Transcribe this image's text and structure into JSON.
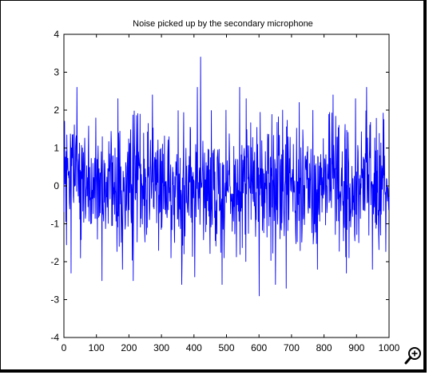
{
  "chart_data": {
    "type": "line",
    "title": "Noise picked up by the secondary microphone",
    "xlabel": "",
    "ylabel": "",
    "xlim": [
      0,
      1000
    ],
    "ylim": [
      -4,
      4
    ],
    "xticks": [
      0,
      100,
      200,
      300,
      400,
      500,
      600,
      700,
      800,
      900,
      1000
    ],
    "yticks": [
      -4,
      -3,
      -2,
      -1,
      0,
      1,
      2,
      3,
      4
    ],
    "xtick_labels": [
      "0",
      "100",
      "200",
      "300",
      "400",
      "500",
      "600",
      "700",
      "800",
      "900",
      "1000"
    ],
    "ytick_labels": [
      "-4",
      "-3",
      "-2",
      "-1",
      "0",
      "1",
      "2",
      "3",
      "4"
    ],
    "grid": true,
    "series": [
      {
        "color": "#0000ff",
        "n_points": 1000,
        "description_of_values": "random noise samples, roughly unit-variance, mostly within [-2, 2]",
        "notable_points": [
          {
            "x": 22,
            "y": -2.3
          },
          {
            "x": 40,
            "y": 2.6
          },
          {
            "x": 117,
            "y": -2.5
          },
          {
            "x": 166,
            "y": 2.3
          },
          {
            "x": 180,
            "y": -2.2
          },
          {
            "x": 213,
            "y": -2.5
          },
          {
            "x": 272,
            "y": 2.4
          },
          {
            "x": 362,
            "y": -2.6
          },
          {
            "x": 402,
            "y": -2.4
          },
          {
            "x": 410,
            "y": 2.6
          },
          {
            "x": 420,
            "y": 3.4
          },
          {
            "x": 486,
            "y": -2.6
          },
          {
            "x": 540,
            "y": 2.6
          },
          {
            "x": 560,
            "y": 2.3
          },
          {
            "x": 600,
            "y": -2.9
          },
          {
            "x": 650,
            "y": -2.6
          },
          {
            "x": 672,
            "y": 2.0
          },
          {
            "x": 683,
            "y": -2.7
          },
          {
            "x": 723,
            "y": 2.2
          },
          {
            "x": 779,
            "y": -2.2
          },
          {
            "x": 827,
            "y": 2.4
          },
          {
            "x": 868,
            "y": -2.3
          },
          {
            "x": 896,
            "y": 2.3
          },
          {
            "x": 930,
            "y": 2.6
          },
          {
            "x": 948,
            "y": -2.2
          }
        ]
      }
    ]
  },
  "toolbar": {
    "zoom_icon": "zoom-in-magnifier-icon"
  }
}
